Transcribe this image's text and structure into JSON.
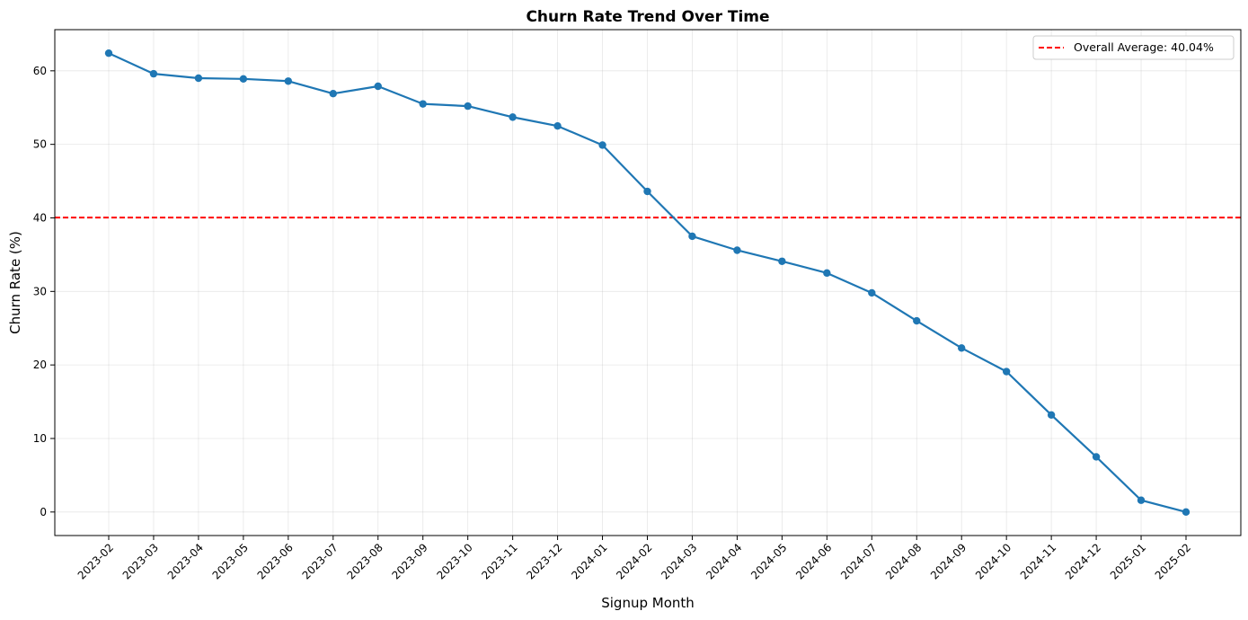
{
  "chart_data": {
    "type": "line",
    "title": "Churn Rate Trend Over Time",
    "xlabel": "Signup Month",
    "ylabel": "Churn Rate (%)",
    "ylim": [
      -3.2,
      65.6
    ],
    "yticks": [
      0,
      10,
      20,
      30,
      40,
      50,
      60
    ],
    "grid": true,
    "legend_position": "top-right",
    "categories": [
      "2023-02",
      "2023-03",
      "2023-04",
      "2023-05",
      "2023-06",
      "2023-07",
      "2023-08",
      "2023-09",
      "2023-10",
      "2023-11",
      "2023-12",
      "2024-01",
      "2024-02",
      "2024-03",
      "2024-04",
      "2024-05",
      "2024-06",
      "2024-07",
      "2024-08",
      "2024-09",
      "2024-10",
      "2024-11",
      "2024-12",
      "2025-01",
      "2025-02"
    ],
    "series": [
      {
        "color": "#1f77b4",
        "values": [
          62.4,
          59.6,
          59.0,
          58.9,
          58.6,
          56.9,
          57.9,
          55.5,
          55.2,
          53.7,
          52.5,
          49.9,
          43.6,
          37.5,
          35.6,
          34.1,
          32.5,
          29.8,
          26.0,
          22.3,
          19.1,
          13.2,
          7.5,
          1.6,
          0.0
        ]
      }
    ],
    "reference_line": {
      "label": "Overall Average: 40.04%",
      "value": 40.04,
      "color": "#ff0000",
      "style": "dashed"
    }
  }
}
